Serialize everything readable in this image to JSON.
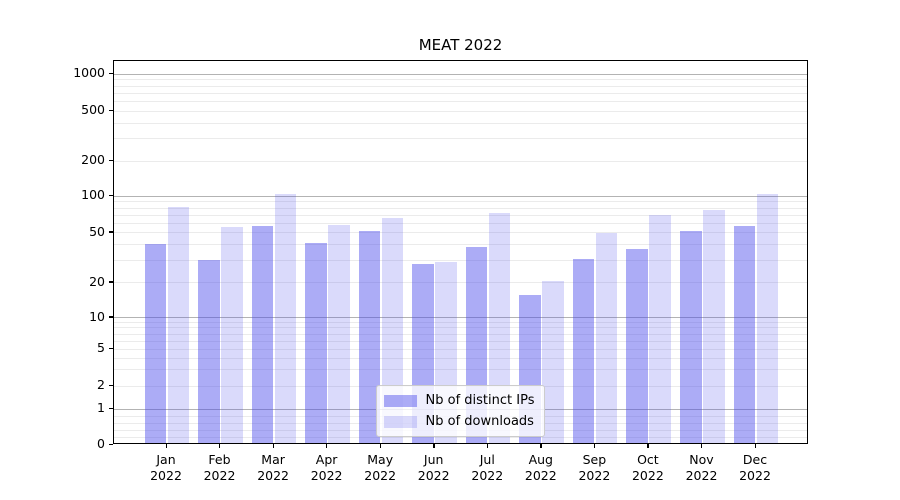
{
  "title": "MEAT 2022",
  "chart_data": {
    "type": "bar",
    "title": "MEAT 2022",
    "categories": [
      "Jan 2022",
      "Feb 2022",
      "Mar 2022",
      "Apr 2022",
      "May 2022",
      "Jun 2022",
      "Jul 2022",
      "Aug 2022",
      "Sep 2022",
      "Oct 2022",
      "Nov 2022",
      "Dec 2022"
    ],
    "x_tick_line1": [
      "Jan",
      "Feb",
      "Mar",
      "Apr",
      "May",
      "Jun",
      "Jul",
      "Aug",
      "Sep",
      "Oct",
      "Nov",
      "Dec"
    ],
    "x_tick_line2": [
      "2022",
      "2022",
      "2022",
      "2022",
      "2022",
      "2022",
      "2022",
      "2022",
      "2022",
      "2022",
      "2022",
      "2022"
    ],
    "series": [
      {
        "name": "Nb of distinct IPs",
        "color": "rgba(70,70,235,0.45)",
        "values": [
          39,
          29,
          55,
          40,
          50,
          27,
          37,
          15,
          30,
          36,
          50,
          55
        ]
      },
      {
        "name": "Nb of downloads",
        "color": "rgba(70,70,235,0.20)",
        "values": [
          78,
          54,
          100,
          56,
          64,
          28,
          70,
          20,
          48,
          67,
          74,
          100
        ]
      }
    ],
    "y_axis": {
      "scale": "symlog",
      "tick_labels": [
        "1000",
        "500",
        "200",
        "100",
        "50",
        "20",
        "10",
        "5",
        "2",
        "1",
        "0"
      ],
      "tick_values": [
        1000,
        500,
        200,
        100,
        50,
        20,
        10,
        5,
        2,
        1,
        0
      ],
      "major_gridlines": [
        1,
        10,
        100,
        1000
      ],
      "minor_gridlines": [
        0.2,
        0.4,
        0.6,
        0.8,
        2,
        3,
        4,
        5,
        6,
        7,
        8,
        9,
        20,
        30,
        40,
        50,
        60,
        70,
        80,
        90,
        200,
        300,
        400,
        500,
        600,
        700,
        800,
        900
      ]
    },
    "grid": true,
    "legend_position": "lower center"
  },
  "colors": {
    "major_grid": "#b3b3b3",
    "minor_grid": "#ebebeb",
    "axis": "#000000"
  }
}
